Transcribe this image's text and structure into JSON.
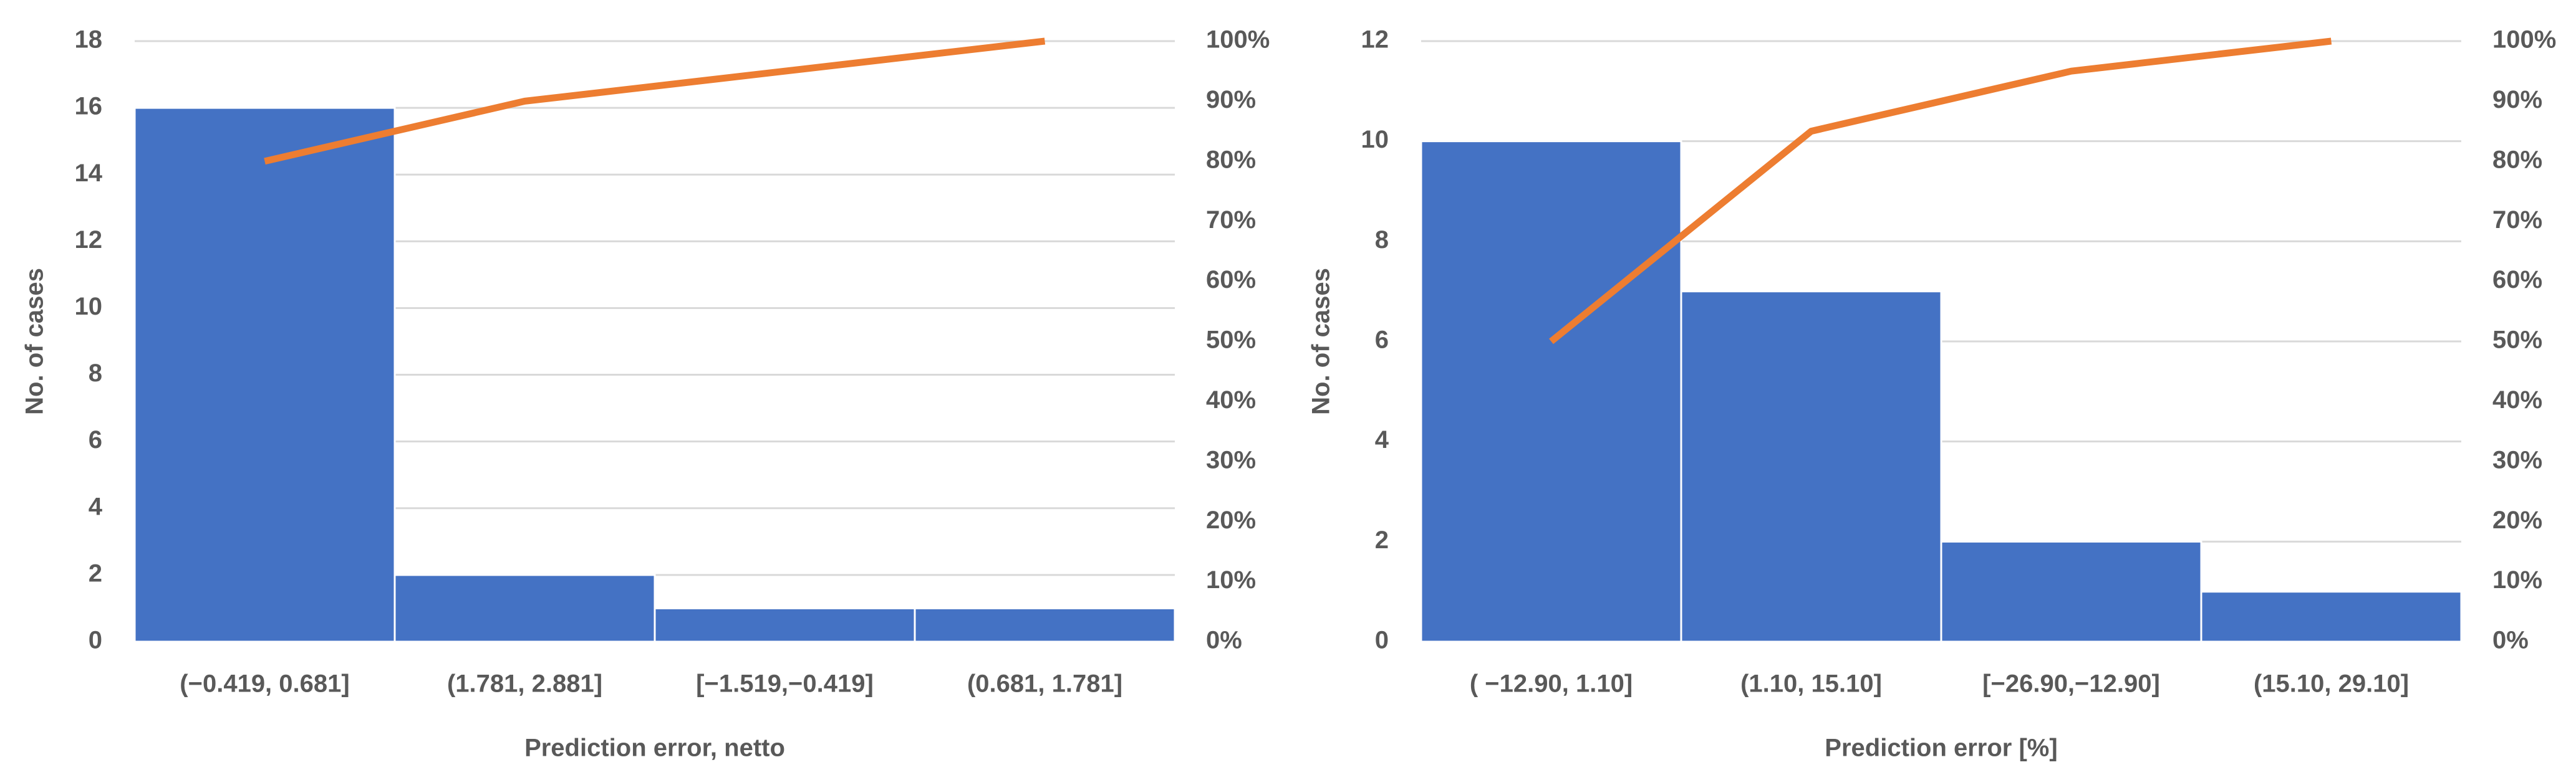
{
  "chart_data": [
    {
      "type": "bar",
      "xlabel": "Prediction error, netto",
      "ylabel": "No. of cases",
      "categories": [
        "(−0.419, 0.681]",
        "(1.781, 2.881]",
        "[−1.519,−0.419]",
        "(0.681, 1.781]"
      ],
      "series": [
        {
          "color": "#4472c4",
          "values": [
            16,
            2,
            1,
            1
          ]
        },
        {
          "type": "line",
          "axis": "y2",
          "color": "#ed7d31",
          "values": [
            80,
            90,
            95,
            100
          ]
        }
      ],
      "ylim": [
        0,
        18
      ],
      "yticks": [
        0,
        2,
        4,
        6,
        8,
        10,
        12,
        14,
        16,
        18
      ],
      "y2lim": [
        0,
        100
      ],
      "y2ticks": [
        {
          "value": 0,
          "label": "0%"
        },
        {
          "value": 10,
          "label": "10%"
        },
        {
          "value": 20,
          "label": "20%"
        },
        {
          "value": 30,
          "label": "30%"
        },
        {
          "value": 40,
          "label": "40%"
        },
        {
          "value": 50,
          "label": "50%"
        },
        {
          "value": 60,
          "label": "60%"
        },
        {
          "value": 70,
          "label": "70%"
        },
        {
          "value": 80,
          "label": "80%"
        },
        {
          "value": 90,
          "label": "90%"
        },
        {
          "value": 100,
          "label": "100%"
        }
      ],
      "grid": true
    },
    {
      "type": "bar",
      "xlabel": "Prediction error [%]",
      "ylabel": "No. of cases",
      "categories": [
        "( −12.90, 1.10]",
        "(1.10, 15.10]",
        "[−26.90,−12.90]",
        "(15.10, 29.10]"
      ],
      "series": [
        {
          "color": "#4472c4",
          "values": [
            10,
            7,
            2,
            1
          ]
        },
        {
          "type": "line",
          "axis": "y2",
          "color": "#ed7d31",
          "values": [
            50,
            85,
            95,
            100
          ]
        }
      ],
      "ylim": [
        0,
        12
      ],
      "yticks": [
        0,
        2,
        4,
        6,
        8,
        10,
        12
      ],
      "y2lim": [
        0,
        100
      ],
      "y2ticks": [
        {
          "value": 0,
          "label": "0%"
        },
        {
          "value": 10,
          "label": "10%"
        },
        {
          "value": 20,
          "label": "20%"
        },
        {
          "value": 30,
          "label": "30%"
        },
        {
          "value": 40,
          "label": "40%"
        },
        {
          "value": 50,
          "label": "50%"
        },
        {
          "value": 60,
          "label": "60%"
        },
        {
          "value": 70,
          "label": "70%"
        },
        {
          "value": 80,
          "label": "80%"
        },
        {
          "value": 90,
          "label": "90%"
        },
        {
          "value": 100,
          "label": "100%"
        }
      ],
      "grid": true
    }
  ]
}
